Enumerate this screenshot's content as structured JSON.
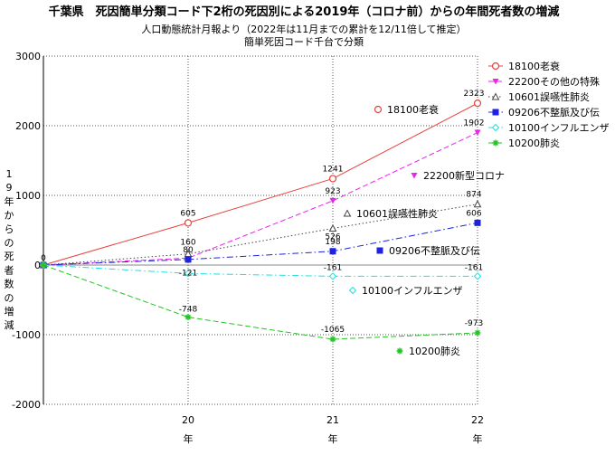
{
  "chart_data": {
    "type": "line",
    "title": "千葉県　死因簡単分類コード下2桁の死因別による2019年（コロナ前）からの年間死者数の増減",
    "subtitles": [
      "人口動態統計月報より（2022年は11月までの累計を12/11倍して推定）",
      "簡単死因コード千台で分類"
    ],
    "ylabel": "19年からの死者数の増減",
    "x_label_suffix": "年",
    "x": [
      "19",
      "20",
      "21",
      "22"
    ],
    "x_tick_labels": [
      "20",
      "21",
      "22"
    ],
    "ylim": [
      -2000,
      3000
    ],
    "y_ticks": [
      "3000",
      "2000",
      "1000",
      "0",
      "-1000",
      "-2000"
    ],
    "grid": true,
    "legend_position": "top-right",
    "series": [
      {
        "name": "18100老衰",
        "values": [
          0,
          605,
          1241,
          2323
        ],
        "color": "#e8413c",
        "marker": "circle-open",
        "dash": "solid",
        "labels": [
          "0",
          "605",
          "1241",
          "2323"
        ],
        "annotation": "18100老衰"
      },
      {
        "name": "22200その他の特殊",
        "values": [
          0,
          100,
          923,
          1902
        ],
        "color": "#ee22ee",
        "marker": "triangle-down",
        "dash": "dash",
        "labels": [
          "",
          "",
          "923",
          "1902"
        ],
        "annotation": "22200新型コロナ"
      },
      {
        "name": "10601誤嚥性肺炎",
        "values": [
          0,
          160,
          526,
          874
        ],
        "color": "#444444",
        "marker": "triangle-open",
        "dash": "dot",
        "labels": [
          "",
          "160",
          "526",
          "874"
        ],
        "annotation": "10601誤嚥性肺炎"
      },
      {
        "name": "09206不整脈及び伝",
        "values": [
          0,
          80,
          198,
          606
        ],
        "color": "#1e22e0",
        "marker": "square",
        "dash": "dashdot",
        "labels": [
          "",
          "80",
          "198",
          "606"
        ],
        "annotation": "09206不整脈及び伝"
      },
      {
        "name": "10100インフルエンザ",
        "values": [
          0,
          -121,
          -161,
          -161
        ],
        "color": "#22dddd",
        "marker": "diamond-open",
        "dash": "dashdot",
        "labels": [
          "",
          "-121",
          "-161",
          "-161"
        ],
        "annotation": "10100インフルエンザ"
      },
      {
        "name": "10200肺炎",
        "values": [
          0,
          -748,
          -1065,
          -973
        ],
        "color": "#22c422",
        "marker": "star",
        "dash": "dash",
        "labels": [
          "",
          "-748",
          "-1065",
          "-973"
        ],
        "annotation": "10200肺炎"
      }
    ]
  }
}
